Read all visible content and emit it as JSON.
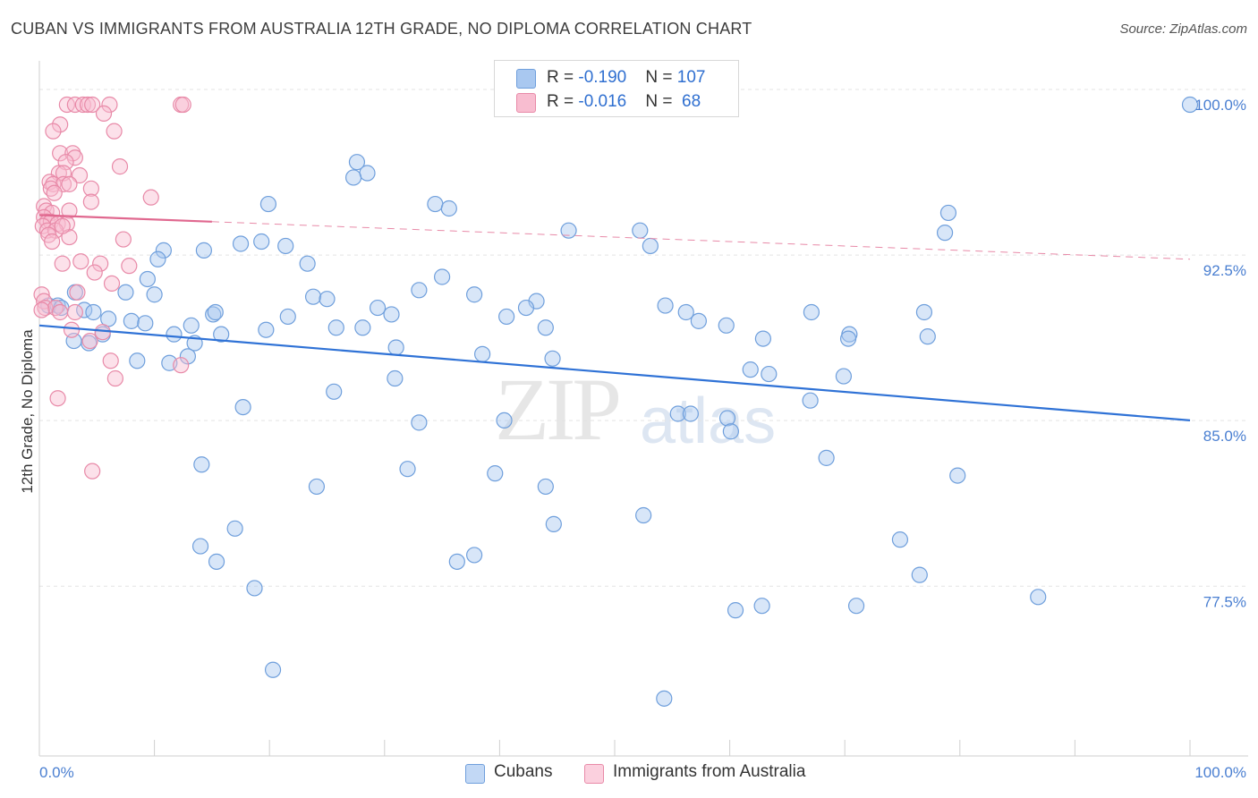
{
  "title": "CUBAN VS IMMIGRANTS FROM AUSTRALIA 12TH GRADE, NO DIPLOMA CORRELATION CHART",
  "source": "Source: ZipAtlas.com",
  "watermark": {
    "zip": "ZIP",
    "atlas": "atlas"
  },
  "legend": {
    "rows": [
      {
        "r_label": "R = ",
        "r_value": "-0.190",
        "n_label": "N = ",
        "n_value": "107",
        "color": "#a9c8f0",
        "border": "#6f9fdc"
      },
      {
        "r_label": "R = ",
        "r_value": "-0.016",
        "n_label": "N = ",
        "n_value": " 68",
        "color": "#f8bdd0",
        "border": "#e88aa8"
      }
    ]
  },
  "bottom_legend": [
    {
      "label": "Cubans",
      "color": "#c2d8f5",
      "border": "#6f9fdc"
    },
    {
      "label": "Immigrants from Australia",
      "color": "#fbd0de",
      "border": "#e88aa8"
    }
  ],
  "chart_data": {
    "type": "scatter",
    "title": "CUBAN VS IMMIGRANTS FROM AUSTRALIA 12TH GRADE, NO DIPLOMA CORRELATION CHART",
    "xlabel": "",
    "ylabel": "12th Grade, No Diploma",
    "xlim": [
      0,
      100
    ],
    "ylim": [
      70.5,
      101.5
    ],
    "x_tick_labels": [
      "0.0%",
      "100.0%"
    ],
    "y_ticks": [
      77.5,
      85.0,
      92.5,
      100.0
    ],
    "y_tick_labels": [
      "77.5%",
      "85.0%",
      "92.5%",
      "100.0%"
    ],
    "grid": true,
    "series": [
      {
        "name": "Cubans",
        "color": "#6f9fdc",
        "fill": "rgba(169,200,240,0.45)",
        "trend": {
          "x0": 0,
          "y0": 90.0,
          "x1": 100,
          "y1": 85.7,
          "dashed_from": null
        },
        "points": [
          [
            100,
            100.0
          ],
          [
            27.6,
            97.4
          ],
          [
            28.5,
            96.9
          ],
          [
            27.3,
            96.7
          ],
          [
            19.9,
            95.5
          ],
          [
            34.4,
            95.5
          ],
          [
            35.6,
            95.3
          ],
          [
            79.0,
            95.1
          ],
          [
            46.0,
            94.3
          ],
          [
            52.2,
            94.3
          ],
          [
            78.7,
            94.2
          ],
          [
            17.5,
            93.7
          ],
          [
            19.3,
            93.8
          ],
          [
            21.4,
            93.6
          ],
          [
            14.3,
            93.4
          ],
          [
            10.8,
            93.4
          ],
          [
            53.1,
            93.6
          ],
          [
            10.3,
            93.0
          ],
          [
            23.3,
            92.8
          ],
          [
            35.0,
            92.2
          ],
          [
            9.4,
            92.1
          ],
          [
            33.0,
            91.6
          ],
          [
            3.1,
            91.5
          ],
          [
            7.5,
            91.5
          ],
          [
            10.0,
            91.4
          ],
          [
            23.8,
            91.3
          ],
          [
            25.0,
            91.2
          ],
          [
            37.8,
            91.4
          ],
          [
            43.2,
            91.1
          ],
          [
            0.8,
            90.9
          ],
          [
            1.6,
            90.9
          ],
          [
            1.9,
            90.8
          ],
          [
            3.9,
            90.7
          ],
          [
            4.7,
            90.6
          ],
          [
            29.4,
            90.8
          ],
          [
            42.3,
            90.8
          ],
          [
            54.4,
            90.9
          ],
          [
            15.1,
            90.5
          ],
          [
            15.3,
            90.6
          ],
          [
            21.6,
            90.4
          ],
          [
            30.6,
            90.5
          ],
          [
            40.6,
            90.4
          ],
          [
            6.0,
            90.3
          ],
          [
            8.0,
            90.2
          ],
          [
            9.2,
            90.1
          ],
          [
            13.2,
            90.0
          ],
          [
            19.7,
            89.8
          ],
          [
            56.2,
            90.6
          ],
          [
            57.3,
            90.2
          ],
          [
            59.7,
            90.0
          ],
          [
            67.1,
            90.6
          ],
          [
            76.9,
            90.6
          ],
          [
            25.8,
            89.9
          ],
          [
            44.0,
            89.9
          ],
          [
            5.5,
            89.6
          ],
          [
            11.7,
            89.6
          ],
          [
            15.8,
            89.6
          ],
          [
            70.4,
            89.6
          ],
          [
            77.2,
            89.5
          ],
          [
            3.0,
            89.3
          ],
          [
            4.3,
            89.2
          ],
          [
            13.5,
            89.2
          ],
          [
            62.9,
            89.4
          ],
          [
            70.3,
            89.4
          ],
          [
            31.0,
            89.0
          ],
          [
            38.5,
            88.7
          ],
          [
            12.9,
            88.6
          ],
          [
            8.5,
            88.4
          ],
          [
            11.3,
            88.3
          ],
          [
            44.6,
            88.5
          ],
          [
            61.8,
            88.0
          ],
          [
            63.4,
            87.8
          ],
          [
            69.9,
            87.7
          ],
          [
            30.9,
            87.6
          ],
          [
            25.6,
            87.0
          ],
          [
            67.0,
            86.6
          ],
          [
            17.7,
            86.3
          ],
          [
            55.5,
            86.0
          ],
          [
            56.6,
            86.0
          ],
          [
            59.8,
            85.8
          ],
          [
            60.1,
            85.2
          ],
          [
            40.4,
            85.7
          ],
          [
            33.0,
            85.6
          ],
          [
            68.4,
            84.0
          ],
          [
            32.0,
            83.5
          ],
          [
            39.6,
            83.3
          ],
          [
            79.8,
            83.2
          ],
          [
            14.1,
            83.7
          ],
          [
            24.1,
            82.7
          ],
          [
            44.0,
            82.7
          ],
          [
            52.5,
            81.4
          ],
          [
            44.7,
            81.0
          ],
          [
            17.0,
            80.8
          ],
          [
            74.8,
            80.3
          ],
          [
            14.0,
            80.0
          ],
          [
            37.8,
            79.6
          ],
          [
            36.3,
            79.3
          ],
          [
            15.4,
            79.3
          ],
          [
            76.5,
            78.7
          ],
          [
            18.7,
            78.1
          ],
          [
            86.8,
            77.7
          ],
          [
            71.0,
            77.3
          ],
          [
            60.5,
            77.1
          ],
          [
            20.3,
            74.4
          ],
          [
            54.3,
            73.1
          ],
          [
            62.8,
            77.3
          ],
          [
            28.1,
            89.9
          ]
        ]
      },
      {
        "name": "Immigrants from Australia",
        "color": "#e88aa8",
        "fill": "rgba(248,189,208,0.45)",
        "trend": {
          "x0": 0,
          "y0": 95.0,
          "x1": 100,
          "y1": 93.0,
          "solid_until": 15
        },
        "points": [
          [
            2.4,
            100.0
          ],
          [
            3.1,
            100.0
          ],
          [
            3.8,
            100.0
          ],
          [
            4.2,
            100.0
          ],
          [
            4.6,
            100.0
          ],
          [
            6.1,
            100.0
          ],
          [
            12.3,
            100.0
          ],
          [
            12.5,
            100.0
          ],
          [
            5.6,
            99.6
          ],
          [
            1.8,
            99.1
          ],
          [
            1.2,
            98.8
          ],
          [
            6.5,
            98.8
          ],
          [
            1.8,
            97.8
          ],
          [
            2.9,
            97.8
          ],
          [
            3.1,
            97.6
          ],
          [
            2.3,
            97.4
          ],
          [
            7.0,
            97.2
          ],
          [
            1.7,
            96.9
          ],
          [
            2.1,
            96.9
          ],
          [
            3.5,
            96.8
          ],
          [
            0.9,
            96.5
          ],
          [
            1.2,
            96.4
          ],
          [
            2.1,
            96.4
          ],
          [
            2.6,
            96.4
          ],
          [
            1.0,
            96.2
          ],
          [
            1.3,
            96.0
          ],
          [
            4.5,
            96.2
          ],
          [
            9.7,
            95.8
          ],
          [
            4.5,
            95.6
          ],
          [
            0.4,
            95.4
          ],
          [
            0.6,
            95.2
          ],
          [
            1.1,
            95.1
          ],
          [
            2.6,
            95.2
          ],
          [
            0.4,
            94.9
          ],
          [
            0.7,
            94.7
          ],
          [
            1.0,
            94.7
          ],
          [
            1.6,
            94.6
          ],
          [
            2.4,
            94.6
          ],
          [
            0.3,
            94.5
          ],
          [
            0.7,
            94.3
          ],
          [
            1.4,
            94.3
          ],
          [
            0.8,
            94.1
          ],
          [
            2.6,
            94.0
          ],
          [
            7.3,
            93.9
          ],
          [
            1.1,
            93.8
          ],
          [
            3.6,
            92.9
          ],
          [
            2.0,
            92.8
          ],
          [
            5.3,
            92.8
          ],
          [
            7.8,
            92.7
          ],
          [
            4.8,
            92.4
          ],
          [
            6.3,
            91.9
          ],
          [
            0.2,
            91.4
          ],
          [
            0.4,
            91.1
          ],
          [
            0.5,
            90.8
          ],
          [
            1.4,
            90.8
          ],
          [
            1.8,
            90.6
          ],
          [
            3.1,
            90.6
          ],
          [
            2.8,
            89.8
          ],
          [
            5.5,
            89.7
          ],
          [
            4.4,
            89.3
          ],
          [
            6.2,
            88.4
          ],
          [
            12.3,
            88.2
          ],
          [
            6.6,
            87.6
          ],
          [
            1.6,
            86.7
          ],
          [
            4.6,
            83.4
          ],
          [
            0.2,
            90.7
          ],
          [
            3.3,
            91.5
          ],
          [
            2.0,
            94.5
          ]
        ]
      }
    ]
  }
}
